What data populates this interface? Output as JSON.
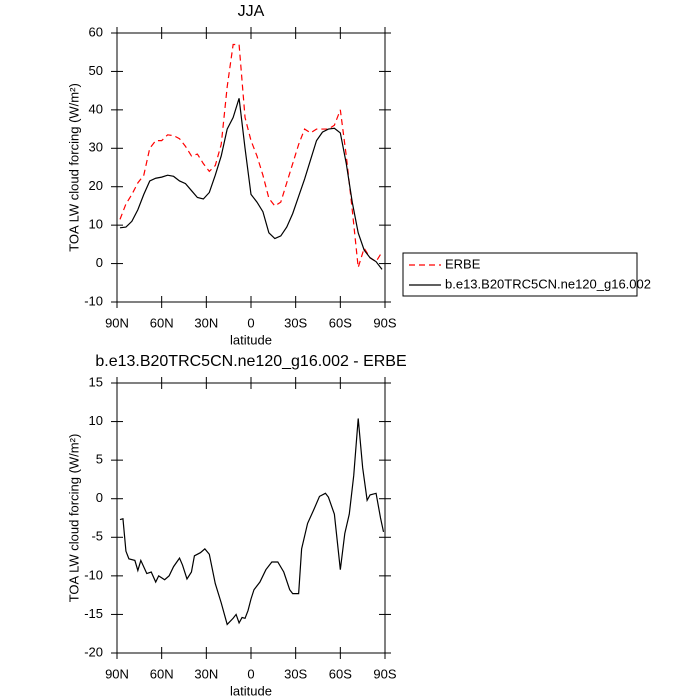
{
  "chart_data": [
    {
      "type": "line",
      "title": "JJA",
      "xlabel": "latitude",
      "ylabel": "TOA LW cloud forcing (W/m²)",
      "xlim": [
        90,
        -90
      ],
      "xticks": [
        {
          "value": 90,
          "label": "90N"
        },
        {
          "value": 60,
          "label": "60N"
        },
        {
          "value": 30,
          "label": "30N"
        },
        0,
        {
          "value": -30,
          "label": "30S"
        },
        {
          "value": -60,
          "label": "60S"
        },
        {
          "value": -90,
          "label": "90S"
        }
      ],
      "ylim": [
        -10,
        60
      ],
      "yticks": [
        -10,
        0,
        10,
        20,
        30,
        40,
        50,
        60
      ],
      "legend": "right",
      "x": [
        88,
        84,
        80,
        76,
        72,
        68,
        64,
        60,
        56,
        52,
        48,
        44,
        40,
        36,
        32,
        28,
        24,
        20,
        16,
        12,
        8,
        4,
        0,
        -4,
        -8,
        -12,
        -16,
        -20,
        -24,
        -28,
        -32,
        -36,
        -40,
        -44,
        -48,
        -52,
        -56,
        -60,
        -64,
        -68,
        -72,
        -76,
        -80,
        -84,
        -88
      ],
      "series": [
        {
          "name": "ERBE",
          "color": "#ff0000",
          "line_style": "dashed",
          "values": [
            11.5,
            15.5,
            18,
            21,
            23,
            30,
            32,
            32,
            33.5,
            33.3,
            32.5,
            30.5,
            28,
            28.5,
            26,
            24,
            25.5,
            31,
            46,
            57,
            57,
            38,
            32,
            28,
            23,
            17,
            15,
            16,
            21,
            26,
            31,
            35,
            34,
            35,
            35,
            35,
            36,
            40,
            28,
            14,
            -1,
            4,
            1.5,
            0.5,
            3
          ]
        },
        {
          "name": "b.e13.B20TRC5CN.ne120_g16.002",
          "color": "#000000",
          "line_style": "solid",
          "values": [
            9.3,
            9.5,
            11,
            14,
            18,
            21.5,
            22.2,
            22.5,
            23,
            22.7,
            21.5,
            20.8,
            19,
            17.2,
            16.8,
            18.5,
            23,
            28,
            35,
            38,
            43,
            30,
            18,
            16,
            13.5,
            8,
            6.5,
            7.2,
            9.5,
            13,
            17.5,
            22,
            27,
            32,
            34.2,
            35,
            35.2,
            34,
            26,
            16,
            8,
            3.5,
            1.5,
            0.5,
            -1.5
          ]
        }
      ]
    },
    {
      "type": "line",
      "title": "b.e13.B20TRC5CN.ne120_g16.002 - ERBE",
      "xlabel": "latitude",
      "ylabel": "TOA LW cloud forcing (W/m²)",
      "xlim": [
        90,
        -90
      ],
      "xticks": [
        {
          "value": 90,
          "label": "90N"
        },
        {
          "value": 60,
          "label": "60N"
        },
        {
          "value": 30,
          "label": "30N"
        },
        0,
        {
          "value": -30,
          "label": "30S"
        },
        {
          "value": -60,
          "label": "60S"
        },
        {
          "value": -90,
          "label": "90S"
        }
      ],
      "ylim": [
        -20,
        15
      ],
      "yticks": [
        -20,
        -15,
        -10,
        -5,
        0,
        5,
        10,
        15
      ],
      "x": [
        88,
        86,
        84,
        82,
        78,
        76,
        74,
        70,
        67,
        64,
        62,
        58,
        55,
        52,
        48,
        46,
        43,
        40,
        38,
        34,
        31,
        28,
        24,
        20,
        16,
        12,
        10,
        8,
        6,
        4,
        2,
        0,
        -2,
        -6,
        -10,
        -14,
        -18,
        -22,
        -26,
        -28,
        -32,
        -34,
        -38,
        -42,
        -46,
        -50,
        -52,
        -56,
        -60,
        -63,
        -66,
        -69,
        -72,
        -75,
        -78,
        -80,
        -84,
        -87,
        -89
      ],
      "series": [
        {
          "color": "#000000",
          "line_style": "solid",
          "values": [
            -2.7,
            -2.6,
            -6.8,
            -7.8,
            -8,
            -9.3,
            -8,
            -9.7,
            -9.5,
            -10.8,
            -10,
            -10.5,
            -10,
            -8.8,
            -7.7,
            -8.6,
            -10.4,
            -9.5,
            -7.4,
            -7,
            -6.5,
            -7.2,
            -11,
            -13.5,
            -16.3,
            -15.5,
            -15,
            -16.1,
            -15.4,
            -15.5,
            -14.5,
            -13,
            -11.8,
            -10.8,
            -9.2,
            -8.2,
            -8.2,
            -9.5,
            -11.8,
            -12.3,
            -12.3,
            -6.5,
            -3.2,
            -1.5,
            0.3,
            0.7,
            0.2,
            -2,
            -9.2,
            -4.5,
            -2,
            3,
            10.4,
            4,
            -0.2,
            0.5,
            0.7,
            -2.5,
            -4.3
          ]
        }
      ]
    }
  ]
}
